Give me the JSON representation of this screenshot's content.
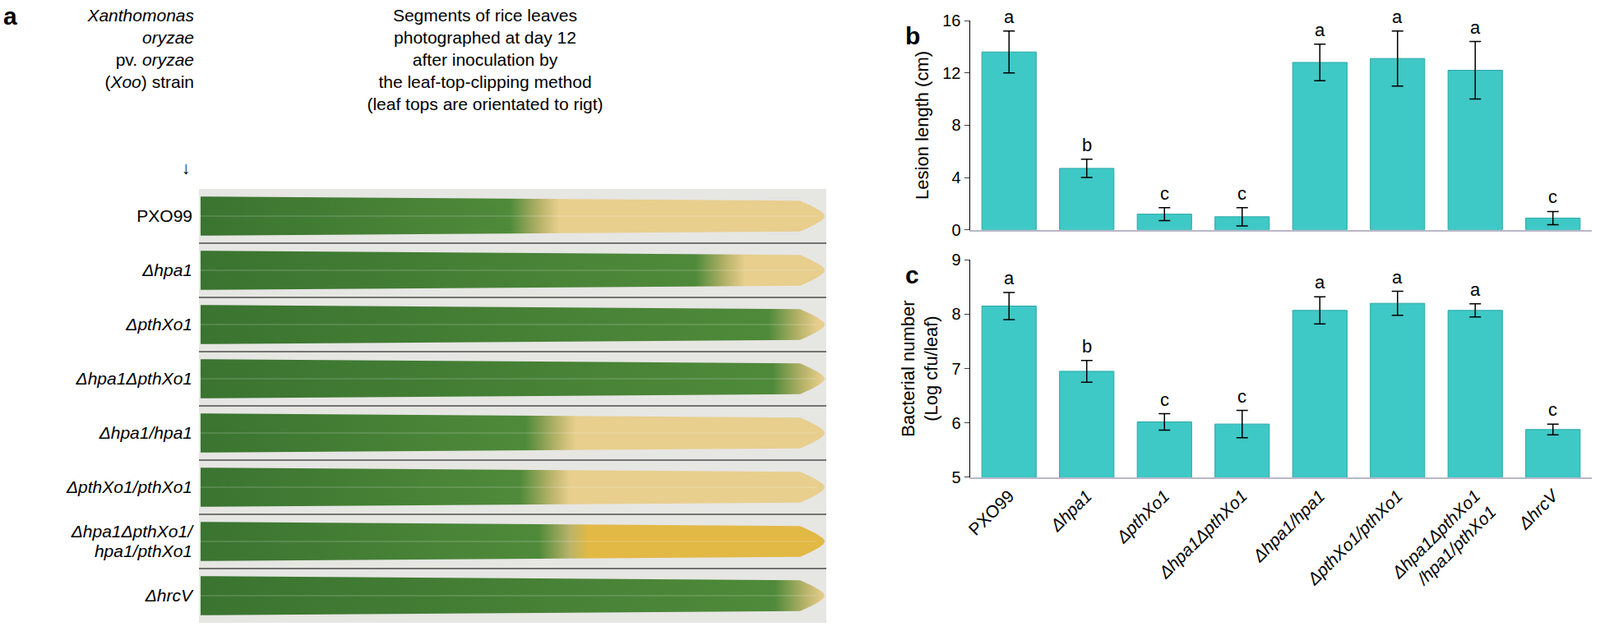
{
  "panel_a": {
    "label": "a",
    "header_left": [
      [
        {
          "text": "Xanthomonas",
          "italic": true
        }
      ],
      [
        {
          "text": "oryzae",
          "italic": true
        }
      ],
      [
        {
          "text": "pv. ",
          "italic": false
        },
        {
          "text": "oryzae",
          "italic": true
        }
      ],
      [
        {
          "text": "(",
          "italic": false
        },
        {
          "text": "Xoo",
          "italic": true
        },
        {
          "text": ") strain",
          "italic": false
        }
      ],
      [
        {
          "text": "↓",
          "italic": false
        }
      ]
    ],
    "header_right": [
      "Segments of rice leaves",
      "photographed at day 12",
      "after inoculation by",
      "the leaf-top-clipping method",
      "(leaf tops are orientated to rigt)"
    ],
    "strains": [
      "PXO99",
      "Δhpa1",
      "ΔpthXo1",
      "Δhpa1ΔpthXo1",
      "Δhpa1/hpa1",
      "ΔpthXo1/pthXo1",
      "Δhpa1ΔpthXo1/\nhpa1/pthXo1",
      "ΔhrcV"
    ]
  },
  "chart_data": [
    {
      "type": "bar",
      "title": "b",
      "categories": [
        "PXO99",
        "Δhpa1",
        "ΔpthXo1",
        "Δhpa1ΔpthXo1",
        "Δhpa1/hpa1",
        "ΔpthXo1/pthXo1",
        "Δhpa1ΔpthXo1\n/hpa1/pthXo1",
        "ΔhrcV"
      ],
      "values": [
        13.6,
        4.7,
        1.2,
        1.0,
        12.8,
        13.1,
        12.2,
        0.9
      ],
      "errors": [
        1.6,
        0.7,
        0.5,
        0.7,
        1.4,
        2.1,
        2.2,
        0.5
      ],
      "letters": [
        "a",
        "b",
        "c",
        "c",
        "a",
        "a",
        "a",
        "c"
      ],
      "y_label": "Lesion length (cm)",
      "color": "#3ec8c6",
      "ylim": [
        0,
        16
      ],
      "yticks": [
        0,
        4,
        8,
        12,
        16
      ],
      "grid": false,
      "tick_labels": "y"
    },
    {
      "type": "bar",
      "title": "c",
      "categories": [
        "PXO99",
        "Δhpa1",
        "ΔpthXo1",
        "Δhpa1ΔpthXo1",
        "Δhpa1/hpa1",
        "ΔpthXo1/pthXo1",
        "Δhpa1ΔpthXo1\n/hpa1/pthXo1",
        "ΔhrcV"
      ],
      "values": [
        8.15,
        6.95,
        6.02,
        5.98,
        8.07,
        8.2,
        8.07,
        5.88
      ],
      "errors": [
        0.25,
        0.2,
        0.15,
        0.25,
        0.25,
        0.22,
        0.12,
        0.1
      ],
      "letters": [
        "a",
        "b",
        "c",
        "c",
        "a",
        "a",
        "a",
        "c"
      ],
      "y_label": "Bacterial number\n(Log cfu/leaf)",
      "color": "#3ec8c6",
      "ylim": [
        5,
        9
      ],
      "yticks": [
        5,
        6,
        7,
        8,
        9
      ],
      "grid": false,
      "tick_labels": true
    }
  ]
}
